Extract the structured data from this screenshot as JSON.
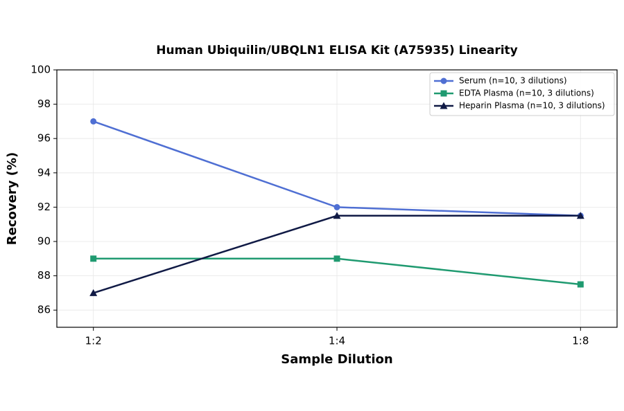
{
  "chart_data": {
    "type": "line",
    "title": "Human Ubiquilin/UBQLN1 ELISA Kit (A75935) Linearity",
    "x_label": "Sample Dilution",
    "y_label": "Recovery (%)",
    "categories": [
      "1:2",
      "1:4",
      "1:8"
    ],
    "series": [
      {
        "name": "Serum (n=10, 3 dilutions)",
        "color": "#4f6fd3",
        "marker": "circle",
        "values": [
          97,
          92,
          91.5
        ]
      },
      {
        "name": "EDTA Plasma (n=10, 3 dilutions)",
        "color": "#1f9a70",
        "marker": "square",
        "values": [
          89,
          89,
          87.5
        ]
      },
      {
        "name": "Heparin Plasma (n=10, 3 dilutions)",
        "color": "#101a45",
        "marker": "triangle",
        "values": [
          87,
          91.5,
          91.5
        ]
      }
    ],
    "ylim": [
      85,
      100
    ],
    "yticks": [
      86,
      88,
      90,
      92,
      94,
      96,
      98,
      100
    ],
    "grid": true,
    "legend": "upper right"
  }
}
